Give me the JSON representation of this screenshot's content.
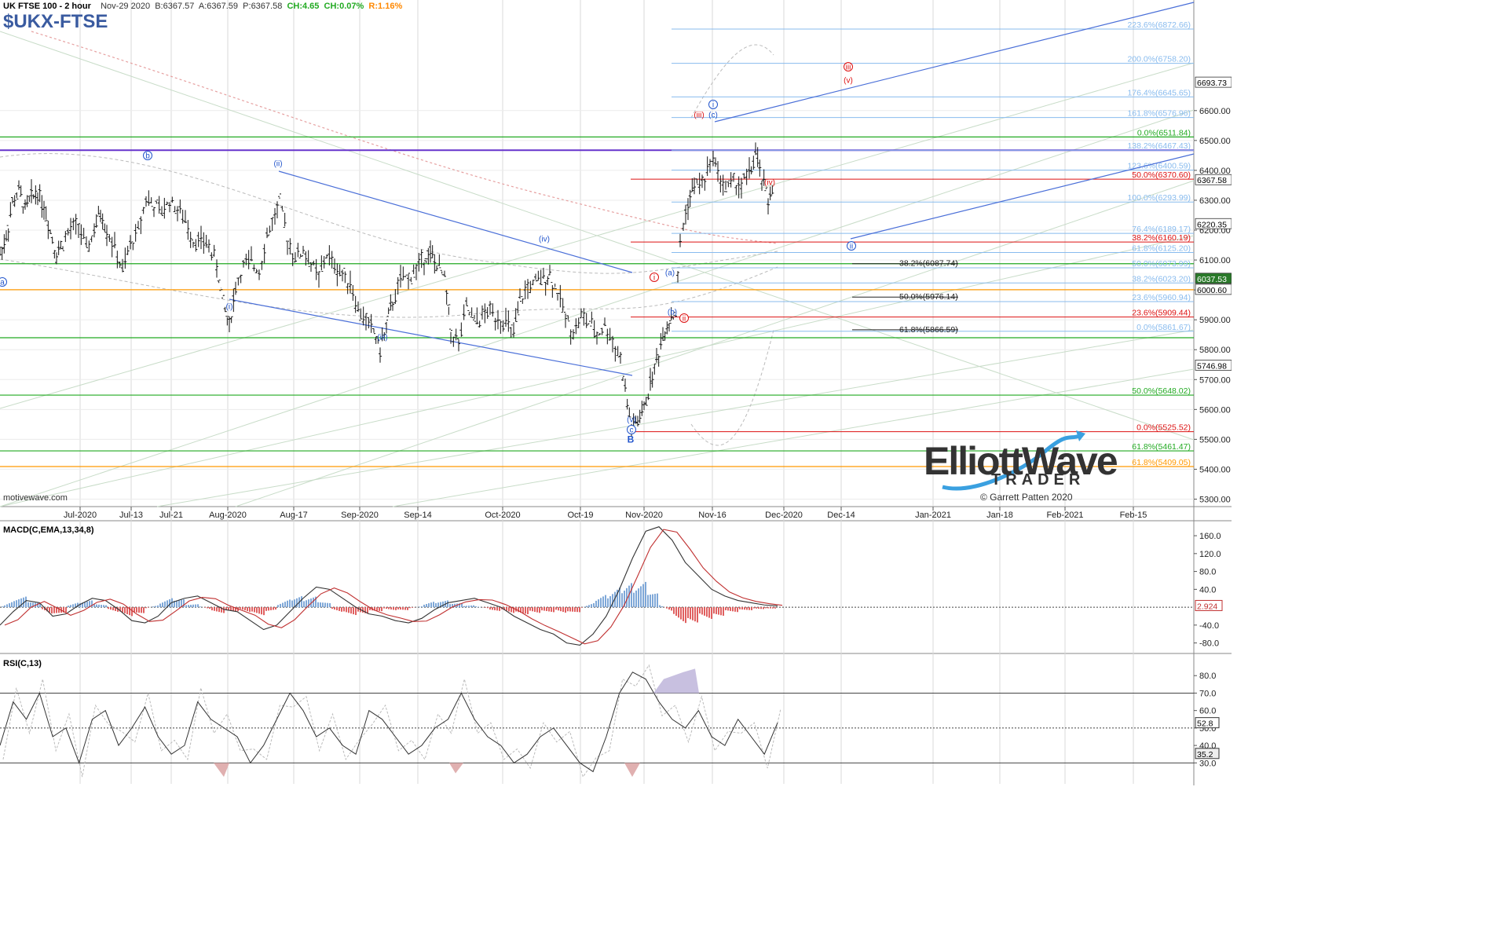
{
  "header": {
    "title": "UK FTSE 100 - 2 hour",
    "date": "Nov-29 2020",
    "bid": "B:6367.57",
    "ask": "A:6367.59",
    "price": "P:6367.58",
    "change_pts": "CH:4.65",
    "change_pct": "CH:0.07%",
    "range": "R:1.16%",
    "symbol": "$UKX-FTSE"
  },
  "watermark": "motivewave.com",
  "logo": {
    "line1": "ElliottWave",
    "line2": "TRADER",
    "line3": "© Garrett Patten 2020"
  },
  "colors": {
    "blue": "#2255cc",
    "red": "#dd1111",
    "green": "#22aa22",
    "orange": "#ff9900",
    "purple": "#6633cc",
    "lightblue": "#88bbee",
    "grid": "#d8d8d8",
    "macd_pos": "#7fa8d8",
    "macd_neg": "#e06060"
  },
  "chart_data": [
    {
      "type": "candlestick",
      "title": "UK FTSE 100 - 2 hour",
      "y_ticks": [
        "5300.00",
        "5400.00",
        "5500.00",
        "5600.00",
        "5700.00",
        "5800.00",
        "5900.00",
        "6000.00",
        "6100.00",
        "6200.00",
        "6300.00",
        "6400.00",
        "6500.00",
        "6600.00"
      ],
      "ylim": [
        5275,
        6970
      ],
      "x_ticks": [
        "Jul-2020",
        "Jul-13",
        "Jul-21",
        "Aug-2020",
        "Aug-17",
        "Sep-2020",
        "Sep-14",
        "Oct-2020",
        "Oct-19",
        "Nov-2020",
        "Nov-16",
        "Dec-2020",
        "Dec-14",
        "Jan-2021",
        "Jan-18",
        "Feb-2021",
        "Feb-15"
      ],
      "price_path": [
        [
          0,
          6120
        ],
        [
          8,
          6180
        ],
        [
          16,
          6290
        ],
        [
          24,
          6330
        ],
        [
          32,
          6270
        ],
        [
          40,
          6310
        ],
        [
          48,
          6330
        ],
        [
          56,
          6280
        ],
        [
          64,
          6200
        ],
        [
          72,
          6120
        ],
        [
          80,
          6160
        ],
        [
          90,
          6200
        ],
        [
          100,
          6220
        ],
        [
          110,
          6130
        ],
        [
          120,
          6200
        ],
        [
          128,
          6260
        ],
        [
          136,
          6200
        ],
        [
          146,
          6140
        ],
        [
          156,
          6060
        ],
        [
          166,
          6150
        ],
        [
          176,
          6200
        ],
        [
          186,
          6310
        ],
        [
          196,
          6280
        ],
        [
          206,
          6260
        ],
        [
          216,
          6300
        ],
        [
          226,
          6270
        ],
        [
          236,
          6230
        ],
        [
          246,
          6170
        ],
        [
          256,
          6160
        ],
        [
          266,
          6150
        ],
        [
          276,
          6080
        ],
        [
          284,
          5960
        ],
        [
          292,
          5880
        ],
        [
          300,
          6010
        ],
        [
          310,
          6080
        ],
        [
          320,
          6090
        ],
        [
          330,
          6070
        ],
        [
          340,
          6180
        ],
        [
          350,
          6250
        ],
        [
          356,
          6290
        ],
        [
          366,
          6170
        ],
        [
          376,
          6110
        ],
        [
          386,
          6130
        ],
        [
          396,
          6090
        ],
        [
          406,
          6040
        ],
        [
          416,
          6120
        ],
        [
          426,
          6080
        ],
        [
          436,
          6050
        ],
        [
          446,
          6030
        ],
        [
          456,
          5930
        ],
        [
          466,
          5900
        ],
        [
          476,
          5860
        ],
        [
          484,
          5800
        ],
        [
          492,
          5880
        ],
        [
          500,
          5960
        ],
        [
          510,
          6030
        ],
        [
          520,
          6040
        ],
        [
          530,
          6070
        ],
        [
          540,
          6110
        ],
        [
          548,
          6120
        ],
        [
          556,
          6080
        ],
        [
          566,
          6040
        ],
        [
          574,
          5860
        ],
        [
          584,
          5820
        ],
        [
          594,
          5940
        ],
        [
          604,
          5890
        ],
        [
          614,
          5910
        ],
        [
          624,
          5930
        ],
        [
          634,
          5910
        ],
        [
          644,
          5890
        ],
        [
          654,
          5850
        ],
        [
          662,
          5960
        ],
        [
          672,
          6010
        ],
        [
          682,
          6020
        ],
        [
          692,
          6040
        ],
        [
          700,
          6050
        ],
        [
          710,
          5990
        ],
        [
          720,
          5910
        ],
        [
          730,
          5860
        ],
        [
          740,
          5910
        ],
        [
          750,
          5890
        ],
        [
          760,
          5850
        ],
        [
          770,
          5880
        ],
        [
          780,
          5830
        ],
        [
          790,
          5770
        ],
        [
          796,
          5660
        ],
        [
          804,
          5540
        ],
        [
          812,
          5560
        ],
        [
          820,
          5600
        ],
        [
          828,
          5690
        ],
        [
          836,
          5760
        ],
        [
          844,
          5850
        ],
        [
          852,
          5900
        ],
        [
          860,
          5920
        ],
        [
          866,
          6150
        ],
        [
          870,
          6220
        ],
        [
          876,
          6290
        ],
        [
          884,
          6350
        ],
        [
          894,
          6360
        ],
        [
          904,
          6410
        ],
        [
          908,
          6460
        ],
        [
          914,
          6390
        ],
        [
          924,
          6340
        ],
        [
          934,
          6360
        ],
        [
          944,
          6350
        ],
        [
          954,
          6390
        ],
        [
          962,
          6450
        ],
        [
          970,
          6370
        ],
        [
          978,
          6300
        ],
        [
          986,
          6368
        ]
      ]
    },
    {
      "type": "line",
      "title": "MACD(C,EMA,13,34,8)",
      "y_ticks": [
        "-80.0",
        "-40.0",
        "40.0",
        "80.0",
        "120.0",
        "160.0"
      ],
      "ylim": [
        -100,
        190
      ],
      "last_value": "2.924",
      "series": [
        {
          "values": [
            -40,
            -10,
            15,
            10,
            -20,
            -15,
            5,
            20,
            15,
            -5,
            -30,
            -35,
            -20,
            10,
            20,
            25,
            10,
            -5,
            -10,
            -30,
            -50,
            -40,
            -10,
            20,
            45,
            40,
            20,
            0,
            -15,
            -20,
            -30,
            -35,
            -25,
            -5,
            10,
            15,
            20,
            10,
            0,
            -20,
            -35,
            -50,
            -60,
            -80,
            -85,
            -60,
            -20,
            40,
            110,
            170,
            180,
            150,
            100,
            70,
            40,
            25,
            15,
            10,
            5,
            3
          ]
        }
      ]
    },
    {
      "type": "line",
      "title": "RSI(C,13)",
      "y_ticks": [
        "30.0",
        "40.0",
        "50.0",
        "60.0",
        "70.0",
        "80.0"
      ],
      "ylim": [
        18,
        90
      ],
      "levels": [
        30,
        50,
        70
      ],
      "last_values": [
        "52.8",
        "35.2"
      ],
      "series": [
        {
          "values": [
            40,
            65,
            55,
            70,
            45,
            50,
            30,
            55,
            60,
            40,
            50,
            62,
            45,
            35,
            40,
            65,
            55,
            50,
            45,
            30,
            40,
            55,
            70,
            60,
            45,
            50,
            40,
            35,
            60,
            55,
            45,
            35,
            40,
            50,
            55,
            70,
            55,
            45,
            40,
            30,
            35,
            45,
            50,
            40,
            30,
            25,
            45,
            70,
            82,
            78,
            65,
            55,
            50,
            60,
            45,
            40,
            55,
            45,
            35,
            53
          ]
        }
      ]
    }
  ],
  "fib_labels": [
    {
      "text": "223.6%(6872.66)",
      "color": "lightblue",
      "price": 6872.66
    },
    {
      "text": "200.0%(6758.20)",
      "color": "lightblue",
      "price": 6758.2
    },
    {
      "text": "176.4%(6645.65)",
      "color": "lightblue",
      "price": 6645.65
    },
    {
      "text": "161.8%(6576.96)",
      "color": "lightblue",
      "price": 6576.96
    },
    {
      "text": "0.0%(6511.84)",
      "color": "green",
      "price": 6511.84
    },
    {
      "text": "138.2%(6467.43)",
      "color": "lightblue",
      "price": 6467.43
    },
    {
      "text": "123.6%(6400.59)",
      "color": "lightblue",
      "price": 6400.59
    },
    {
      "text": "50.0%(6370.60)",
      "color": "red",
      "price": 6370.6
    },
    {
      "text": "100.0%(6293.99)",
      "color": "lightblue",
      "price": 6293.99
    },
    {
      "text": "76.4%(6189.17)",
      "color": "lightblue",
      "price": 6189.17
    },
    {
      "text": "38.2%(6160.19)",
      "color": "red",
      "price": 6160.19
    },
    {
      "text": "61.8%(6125.20)",
      "color": "lightblue",
      "price": 6125.2
    },
    {
      "text": "50.0%(6073.99)",
      "color": "lightblue",
      "price": 6073.99
    },
    {
      "text": "38.2%(6023.20)",
      "color": "lightblue",
      "price": 6023.2
    },
    {
      "text": "23.6%(5960.94)",
      "color": "lightblue",
      "price": 5960.94
    },
    {
      "text": "23.6%(5909.44)",
      "color": "red",
      "price": 5909.44
    },
    {
      "text": "0.0%(5861.67)",
      "color": "lightblue",
      "price": 5861.67
    },
    {
      "text": "50.0%(5648.02)",
      "color": "green",
      "price": 5648.02
    },
    {
      "text": "0.0%(5525.52)",
      "color": "red",
      "price": 5525.52
    },
    {
      "text": "61.8%(5461.47)",
      "color": "green",
      "price": 5461.47
    },
    {
      "text": "61.8%(5409.05)",
      "color": "orange",
      "price": 5409.05
    }
  ],
  "retrace_labels": [
    {
      "text": "38.2%(6087.74)",
      "price": 6087.74
    },
    {
      "text": "50.0%(5976.14)",
      "price": 5976.14
    },
    {
      "text": "61.8%(5866.59)",
      "price": 5866.59
    }
  ],
  "price_tags": [
    {
      "text": "6693.73",
      "price": 6693.73
    },
    {
      "text": "6367.58",
      "price": 6367.58
    },
    {
      "text": "6220.35",
      "price": 6220.35
    },
    {
      "text": "6037.53",
      "price": 6037.53
    },
    {
      "text": "6000.60",
      "price": 6000.6
    },
    {
      "text": "5746.98",
      "price": 5746.98
    }
  ],
  "wave_labels": [
    {
      "text": "b",
      "color": "blue",
      "circle": true,
      "price": 6340
    },
    {
      "text": "(ii)",
      "color": "blue",
      "price": 6310
    },
    {
      "text": "(i)",
      "color": "blue",
      "price": 5852
    },
    {
      "text": "(iii)",
      "color": "blue",
      "price": 5745
    },
    {
      "text": "(iv)",
      "color": "blue",
      "price": 6085
    },
    {
      "text": "(v)",
      "color": "blue",
      "price": 5495
    },
    {
      "text": "c",
      "color": "blue",
      "circle": true,
      "price": 5467
    },
    {
      "text": "B",
      "color": "blue",
      "price": 5440
    },
    {
      "text": "i",
      "color": "red",
      "circle": true,
      "price": 5955
    },
    {
      "text": "(a)",
      "color": "blue",
      "price": 5970
    },
    {
      "text": "(b)",
      "color": "blue",
      "price": 5835
    },
    {
      "text": "ii",
      "color": "red",
      "circle": true,
      "price": 5815
    },
    {
      "text": "i",
      "color": "blue",
      "circle": true,
      "price": 6535
    },
    {
      "text": "(iii)",
      "color": "red",
      "price": 6460
    },
    {
      "text": "(c)",
      "color": "blue",
      "price": 6460
    },
    {
      "text": "(iv)",
      "color": "red",
      "price": 6240
    },
    {
      "text": "iii",
      "color": "red",
      "circle": true,
      "price": 6690
    },
    {
      "text": "(v)",
      "color": "red",
      "price": 6615
    },
    {
      "text": "ii",
      "color": "blue",
      "circle": true,
      "price": 6045
    },
    {
      "text": "a",
      "color": "blue",
      "circle": true,
      "price": 5925
    }
  ]
}
